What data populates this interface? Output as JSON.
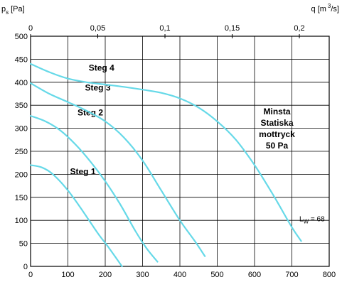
{
  "chart_data": {
    "type": "line",
    "ylabel_symbol": "p",
    "ylabel_subscript": "s",
    "ylabel_unit": "[Pa]",
    "top_xlabel": "q [m",
    "top_xlabel_sup": "3",
    "top_xlabel_end": "/s]",
    "xlim": [
      0,
      800
    ],
    "ylim": [
      0,
      500
    ],
    "top_xlim": [
      0,
      0.2222
    ],
    "x_ticks": [
      "0",
      "100",
      "200",
      "300",
      "400",
      "500",
      "600",
      "700",
      "800"
    ],
    "y_ticks": [
      "0",
      "50",
      "100",
      "150",
      "200",
      "250",
      "300",
      "350",
      "400",
      "450",
      "500"
    ],
    "top_ticks": [
      {
        "value": 0,
        "label": "0"
      },
      {
        "value": 0.05,
        "label": "0,05"
      },
      {
        "value": 0.1,
        "label": "0,1"
      },
      {
        "value": 0.15,
        "label": "0,15"
      },
      {
        "value": 0.2,
        "label": "0,2"
      }
    ],
    "grid": true,
    "series_color": "#66d9e8",
    "series": [
      {
        "name": "Steg 1",
        "label_pos": {
          "x": 140,
          "y": 200
        },
        "points": [
          [
            0,
            220
          ],
          [
            30,
            215
          ],
          [
            60,
            200
          ],
          [
            100,
            165
          ],
          [
            140,
            120
          ],
          [
            180,
            72
          ],
          [
            210,
            40
          ],
          [
            245,
            0
          ]
        ]
      },
      {
        "name": "Steg 2",
        "label_pos": {
          "x": 160,
          "y": 328
        },
        "points": [
          [
            0,
            327
          ],
          [
            40,
            315
          ],
          [
            80,
            295
          ],
          [
            120,
            265
          ],
          [
            160,
            228
          ],
          [
            200,
            185
          ],
          [
            240,
            135
          ],
          [
            280,
            78
          ],
          [
            310,
            40
          ],
          [
            340,
            10
          ]
        ]
      },
      {
        "name": "Steg 3",
        "label_pos": {
          "x": 180,
          "y": 382
        },
        "points": [
          [
            0,
            398
          ],
          [
            50,
            375
          ],
          [
            100,
            357
          ],
          [
            150,
            338
          ],
          [
            200,
            315
          ],
          [
            250,
            280
          ],
          [
            300,
            230
          ],
          [
            350,
            165
          ],
          [
            400,
            100
          ],
          [
            440,
            55
          ],
          [
            467,
            22
          ]
        ]
      },
      {
        "name": "Steg 4",
        "label_pos": {
          "x": 190,
          "y": 425
        },
        "points": [
          [
            0,
            440
          ],
          [
            50,
            422
          ],
          [
            100,
            408
          ],
          [
            150,
            400
          ],
          [
            200,
            395
          ],
          [
            250,
            390
          ],
          [
            300,
            384
          ],
          [
            350,
            377
          ],
          [
            400,
            365
          ],
          [
            450,
            345
          ],
          [
            500,
            315
          ],
          [
            550,
            275
          ],
          [
            600,
            220
          ],
          [
            650,
            155
          ],
          [
            700,
            85
          ],
          [
            725,
            55
          ]
        ]
      }
    ],
    "annotation": {
      "lines": [
        "Minsta",
        "Statiska",
        "mottryck",
        "50 Pa"
      ],
      "anchor_x": 660,
      "anchor_y": 330
    },
    "lw_label": {
      "text": "L",
      "sub": "W",
      "rest": " = 68",
      "x": 720,
      "y": 98
    }
  }
}
